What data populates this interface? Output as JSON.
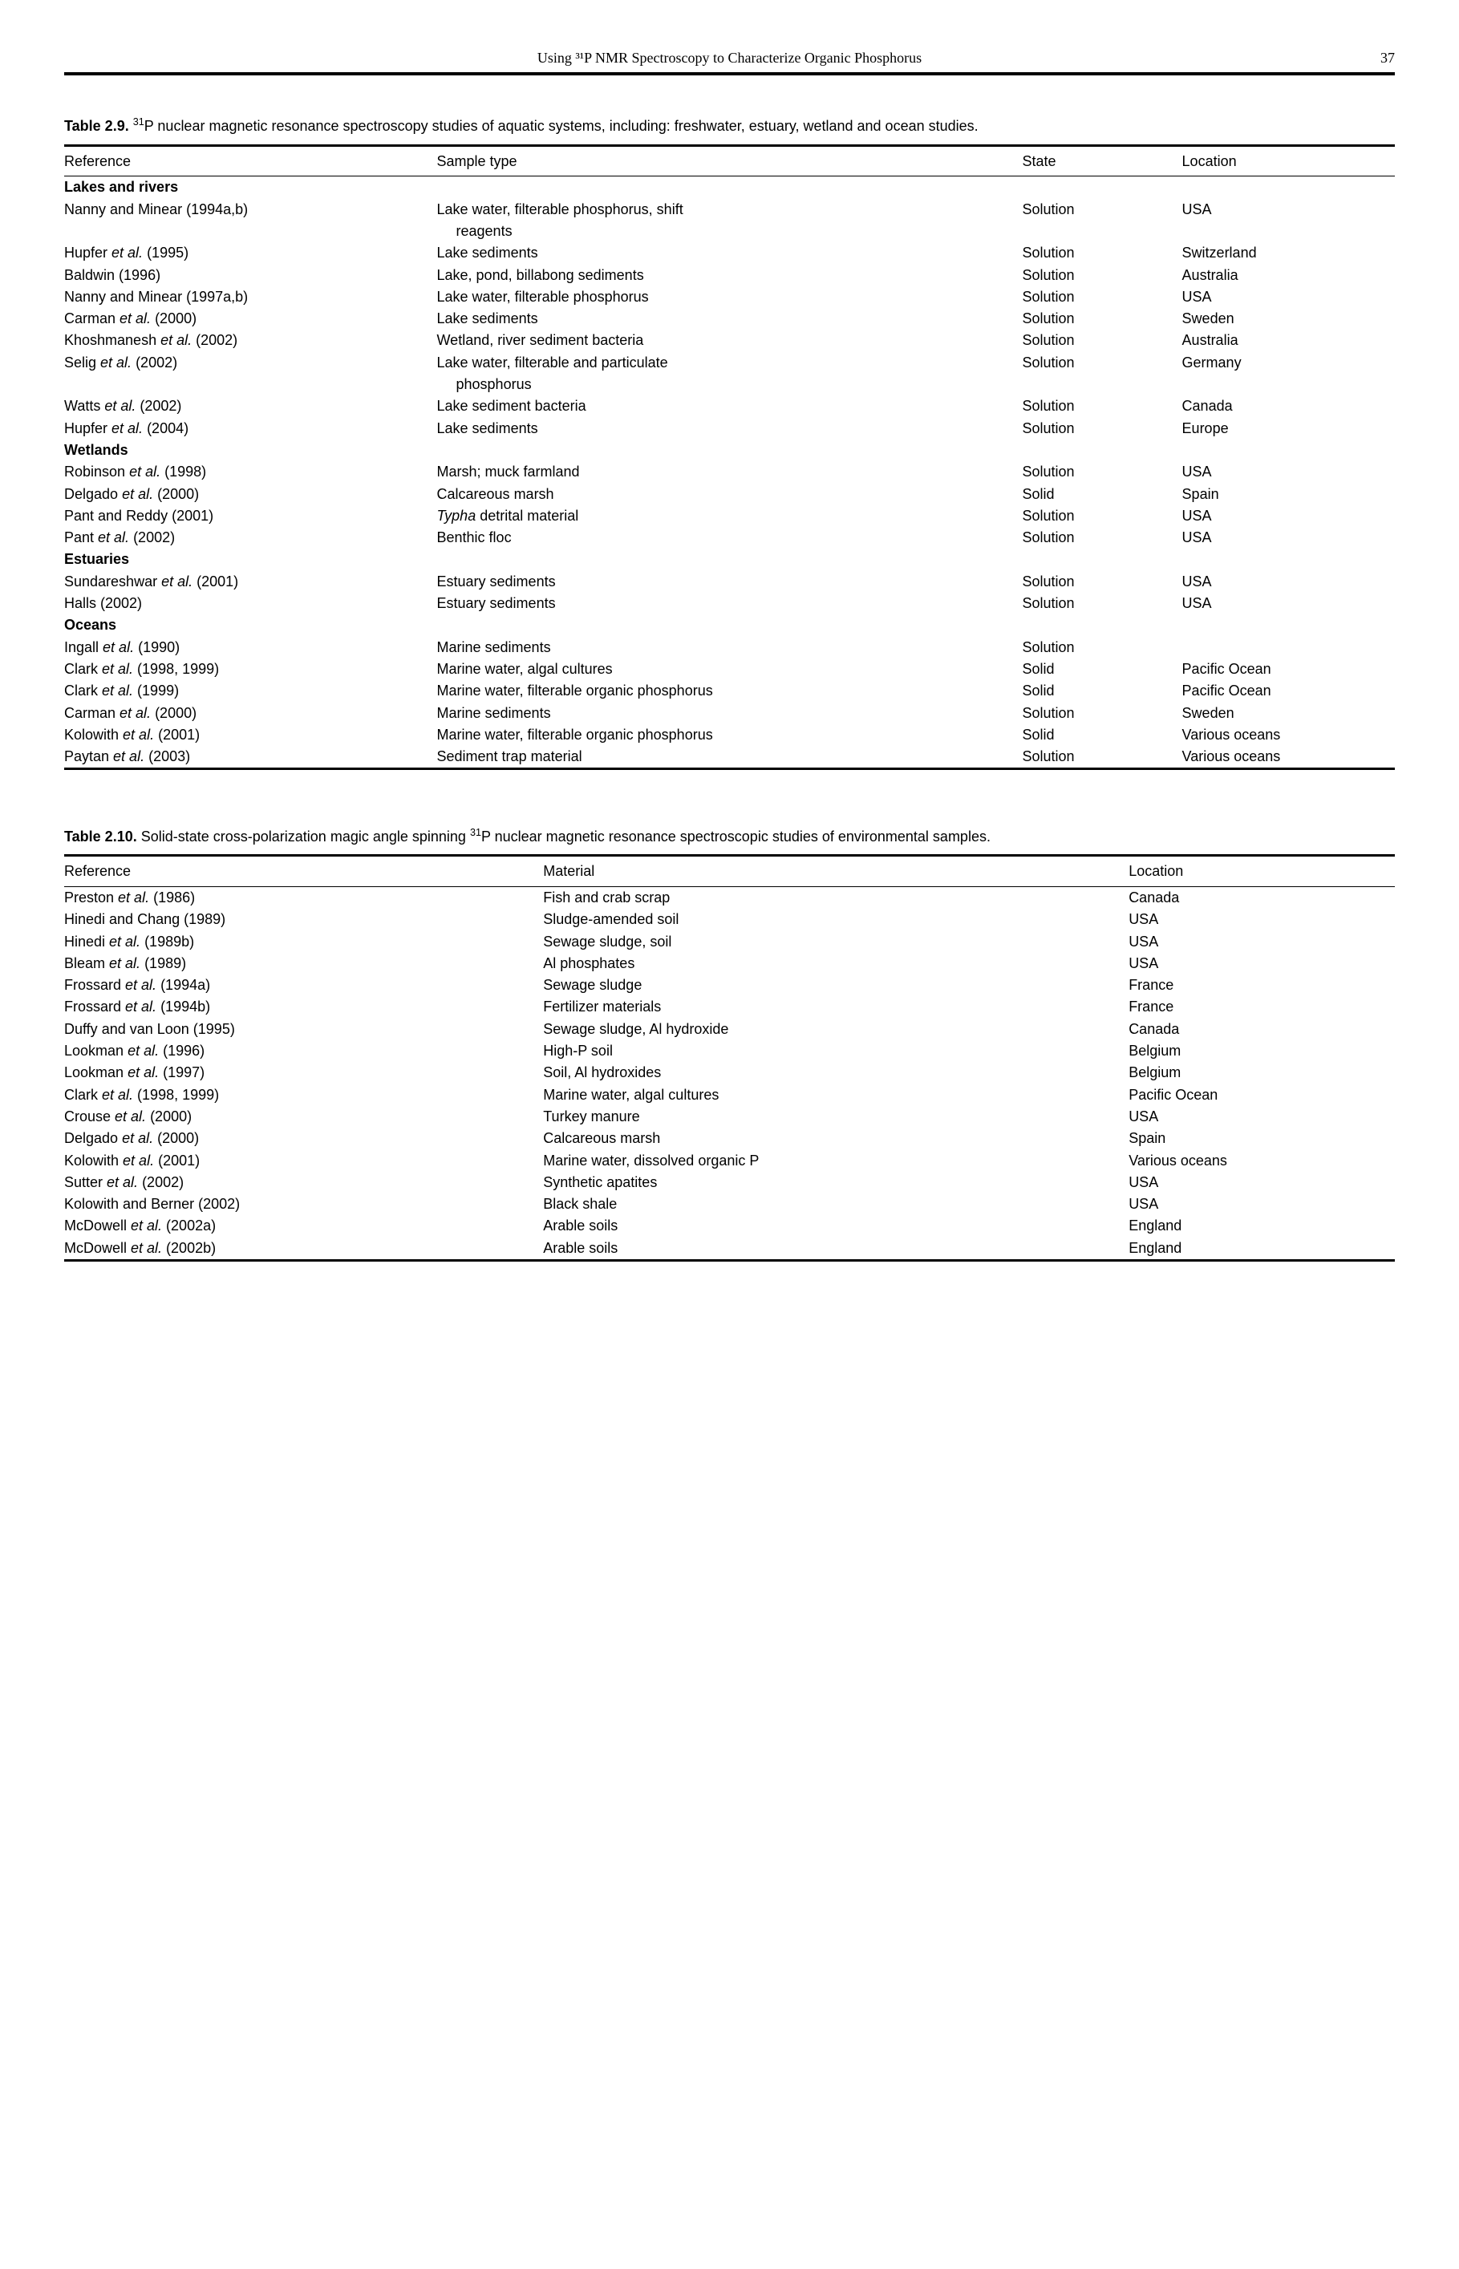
{
  "header": {
    "running_title": "Using ³¹P NMR Spectroscopy to Characterize Organic Phosphorus",
    "page_number": "37"
  },
  "table29": {
    "caption_bold": "Table 2.9.",
    "caption_rest_pre": " ",
    "caption_sup": "31",
    "caption_rest": "P nuclear magnetic resonance spectroscopy studies of aquatic systems, including: freshwater, estuary, wetland and ocean studies.",
    "columns": [
      "Reference",
      "Sample type",
      "State",
      "Location"
    ],
    "sections": [
      {
        "title": "Lakes and rivers",
        "rows": [
          {
            "ref_pre": "Nanny and Minear (1994a,b)",
            "ref_ital": "",
            "ref_post": "",
            "sample": "Lake water, filterable phosphorus, shift",
            "sample_cont": "reagents",
            "state": "Solution",
            "loc": "USA"
          },
          {
            "ref_pre": "Hupfer ",
            "ref_ital": "et al.",
            "ref_post": " (1995)",
            "sample": "Lake sediments",
            "state": "Solution",
            "loc": "Switzerland"
          },
          {
            "ref_pre": "Baldwin (1996)",
            "ref_ital": "",
            "ref_post": "",
            "sample": "Lake, pond, billabong sediments",
            "state": "Solution",
            "loc": "Australia"
          },
          {
            "ref_pre": "Nanny and Minear (1997a,b)",
            "ref_ital": "",
            "ref_post": "",
            "sample": "Lake water, filterable phosphorus",
            "state": "Solution",
            "loc": "USA"
          },
          {
            "ref_pre": "Carman ",
            "ref_ital": "et al.",
            "ref_post": " (2000)",
            "sample": "Lake sediments",
            "state": "Solution",
            "loc": "Sweden"
          },
          {
            "ref_pre": "Khoshmanesh ",
            "ref_ital": "et al.",
            "ref_post": " (2002)",
            "sample": "Wetland, river sediment bacteria",
            "state": "Solution",
            "loc": "Australia"
          },
          {
            "ref_pre": "Selig ",
            "ref_ital": "et al.",
            "ref_post": " (2002)",
            "sample": "Lake water, filterable and particulate",
            "sample_cont": "phosphorus",
            "state": "Solution",
            "loc": "Germany"
          },
          {
            "ref_pre": "Watts ",
            "ref_ital": "et al.",
            "ref_post": " (2002)",
            "sample": "Lake sediment bacteria",
            "state": "Solution",
            "loc": "Canada"
          },
          {
            "ref_pre": "Hupfer ",
            "ref_ital": "et al.",
            "ref_post": " (2004)",
            "sample": "Lake sediments",
            "state": "Solution",
            "loc": "Europe"
          }
        ]
      },
      {
        "title": "Wetlands",
        "rows": [
          {
            "ref_pre": "Robinson ",
            "ref_ital": "et al.",
            "ref_post": " (1998)",
            "sample": "Marsh; muck farmland",
            "state": "Solution",
            "loc": "USA"
          },
          {
            "ref_pre": "Delgado ",
            "ref_ital": "et al.",
            "ref_post": " (2000)",
            "sample": "Calcareous marsh",
            "state": "Solid",
            "loc": "Spain"
          },
          {
            "ref_pre": "Pant and Reddy (2001)",
            "ref_ital": "",
            "ref_post": "",
            "sample_ital": "Typha",
            "sample_post": " detrital material",
            "state": "Solution",
            "loc": "USA"
          },
          {
            "ref_pre": "Pant ",
            "ref_ital": "et al.",
            "ref_post": " (2002)",
            "sample": "Benthic floc",
            "state": "Solution",
            "loc": "USA"
          }
        ]
      },
      {
        "title": "Estuaries",
        "rows": [
          {
            "ref_pre": "Sundareshwar ",
            "ref_ital": "et al.",
            "ref_post": " (2001)",
            "sample": "Estuary sediments",
            "state": "Solution",
            "loc": "USA"
          },
          {
            "ref_pre": "Halls (2002)",
            "ref_ital": "",
            "ref_post": "",
            "sample": "Estuary sediments",
            "state": "Solution",
            "loc": "USA"
          }
        ]
      },
      {
        "title": "Oceans",
        "rows": [
          {
            "ref_pre": "Ingall ",
            "ref_ital": "et al.",
            "ref_post": " (1990)",
            "sample": "Marine sediments",
            "state": "Solution",
            "loc": ""
          },
          {
            "ref_pre": "Clark ",
            "ref_ital": "et al.",
            "ref_post": " (1998, 1999)",
            "sample": "Marine water, algal cultures",
            "state": "Solid",
            "loc": "Pacific Ocean"
          },
          {
            "ref_pre": "Clark ",
            "ref_ital": "et al.",
            "ref_post": " (1999)",
            "sample": "Marine water, filterable organic phosphorus",
            "state": "Solid",
            "loc": "Pacific Ocean"
          },
          {
            "ref_pre": "Carman ",
            "ref_ital": "et al.",
            "ref_post": " (2000)",
            "sample": "Marine sediments",
            "state": "Solution",
            "loc": "Sweden"
          },
          {
            "ref_pre": "Kolowith ",
            "ref_ital": "et al.",
            "ref_post": " (2001)",
            "sample": "Marine water, filterable organic phosphorus",
            "state": "Solid",
            "loc": "Various oceans"
          },
          {
            "ref_pre": "Paytan ",
            "ref_ital": "et al.",
            "ref_post": " (2003)",
            "sample": "Sediment trap material",
            "state": "Solution",
            "loc": "Various oceans"
          }
        ]
      }
    ]
  },
  "table210": {
    "caption_bold": "Table 2.10.",
    "caption_rest_pre": " Solid-state cross-polarization magic angle spinning ",
    "caption_sup": "31",
    "caption_rest": "P nuclear magnetic resonance spectroscopic studies of environmental samples.",
    "columns": [
      "Reference",
      "Material",
      "Location"
    ],
    "rows": [
      {
        "ref_pre": "Preston ",
        "ref_ital": "et al.",
        "ref_post": " (1986)",
        "mat": "Fish and crab scrap",
        "loc": "Canada"
      },
      {
        "ref_pre": "Hinedi and Chang (1989)",
        "ref_ital": "",
        "ref_post": "",
        "mat": "Sludge-amended soil",
        "loc": "USA"
      },
      {
        "ref_pre": "Hinedi ",
        "ref_ital": "et al.",
        "ref_post": " (1989b)",
        "mat": "Sewage sludge, soil",
        "loc": "USA"
      },
      {
        "ref_pre": "Bleam ",
        "ref_ital": "et al.",
        "ref_post": " (1989)",
        "mat": "Al phosphates",
        "loc": "USA"
      },
      {
        "ref_pre": "Frossard ",
        "ref_ital": "et al.",
        "ref_post": " (1994a)",
        "mat": "Sewage sludge",
        "loc": "France"
      },
      {
        "ref_pre": "Frossard ",
        "ref_ital": "et al.",
        "ref_post": " (1994b)",
        "mat": "Fertilizer materials",
        "loc": "France"
      },
      {
        "ref_pre": "Duffy and van Loon (1995)",
        "ref_ital": "",
        "ref_post": "",
        "mat": "Sewage sludge, Al hydroxide",
        "loc": "Canada"
      },
      {
        "ref_pre": "Lookman ",
        "ref_ital": "et al.",
        "ref_post": " (1996)",
        "mat": "High-P soil",
        "loc": "Belgium"
      },
      {
        "ref_pre": "Lookman ",
        "ref_ital": "et al.",
        "ref_post": " (1997)",
        "mat": "Soil, Al hydroxides",
        "loc": "Belgium"
      },
      {
        "ref_pre": "Clark ",
        "ref_ital": "et al.",
        "ref_post": " (1998, 1999)",
        "mat": "Marine water, algal cultures",
        "loc": "Pacific Ocean"
      },
      {
        "ref_pre": "Crouse ",
        "ref_ital": "et al.",
        "ref_post": " (2000)",
        "mat": "Turkey manure",
        "loc": "USA"
      },
      {
        "ref_pre": "Delgado ",
        "ref_ital": "et al.",
        "ref_post": " (2000)",
        "mat": "Calcareous marsh",
        "loc": "Spain"
      },
      {
        "ref_pre": "Kolowith ",
        "ref_ital": "et al.",
        "ref_post": " (2001)",
        "mat": "Marine water, dissolved organic P",
        "loc": "Various oceans"
      },
      {
        "ref_pre": "Sutter ",
        "ref_ital": "et al.",
        "ref_post": " (2002)",
        "mat": "Synthetic apatites",
        "loc": "USA"
      },
      {
        "ref_pre": "Kolowith and Berner (2002)",
        "ref_ital": "",
        "ref_post": "",
        "mat": "Black shale",
        "loc": "USA"
      },
      {
        "ref_pre": "McDowell ",
        "ref_ital": "et al.",
        "ref_post": " (2002a)",
        "mat": "Arable soils",
        "loc": "England"
      },
      {
        "ref_pre": "McDowell ",
        "ref_ital": "et al.",
        "ref_post": " (2002b)",
        "mat": "Arable soils",
        "loc": "England"
      }
    ]
  }
}
